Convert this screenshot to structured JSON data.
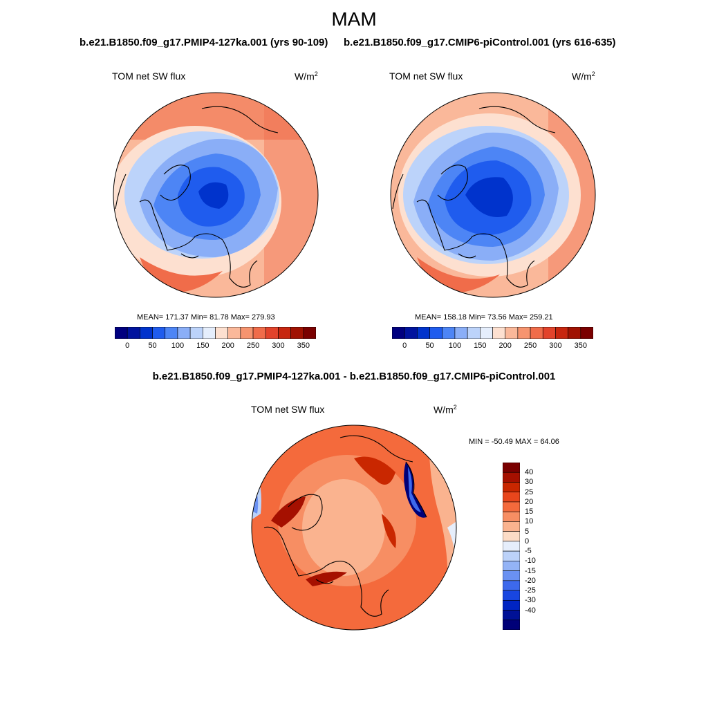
{
  "main_title": "MAM",
  "panels": [
    {
      "title": "b.e21.B1850.f09_g17.PMIP4-127ka.001 (yrs 90-109)",
      "variable": "TOM net SW flux",
      "units": "W/m",
      "units_sup": "2",
      "stats": "MEAN= 171.37  Min=  81.78  Max= 279.93",
      "stat_values": {
        "mean": 171.37,
        "min": 81.78,
        "max": 279.93
      }
    },
    {
      "title": "b.e21.B1850.f09_g17.CMIP6-piControl.001 (yrs 616-635)",
      "variable": "TOM net SW flux",
      "units": "W/m",
      "units_sup": "2",
      "stats": "MEAN= 158.18  Min=  73.56  Max= 259.21",
      "stat_values": {
        "mean": 158.18,
        "min": 73.56,
        "max": 259.21
      }
    },
    {
      "title": "b.e21.B1850.f09_g17.PMIP4-127ka.001 - b.e21.B1850.f09_g17.CMIP6-piControl.001",
      "variable": "TOM net SW flux",
      "units": "W/m",
      "units_sup": "2",
      "stats": "MIN = -50.49 MAX =  64.06",
      "stat_values": {
        "min": -50.49,
        "max": 64.06
      }
    }
  ],
  "colorbar_abs": {
    "colors": [
      "#00007f",
      "#00139e",
      "#0033cc",
      "#1f5cee",
      "#4d85f5",
      "#8aaef7",
      "#bcd3fa",
      "#e5eefc",
      "#fde0d0",
      "#fab89a",
      "#f6946f",
      "#f06c4a",
      "#e2432b",
      "#c7260f",
      "#a01202",
      "#7a0000"
    ],
    "ticks": [
      "0",
      "50",
      "100",
      "150",
      "200",
      "250",
      "300",
      "350"
    ]
  },
  "colorbar_diff": {
    "colors_top_to_bottom": [
      "#7a0000",
      "#a51000",
      "#c92700",
      "#e8461c",
      "#f46a3c",
      "#f78e63",
      "#fab38f",
      "#fcdcc6",
      "#e6eefb",
      "#bcd2f9",
      "#93b3f6",
      "#6a91f2",
      "#3d69ec",
      "#1846e0",
      "#0024c2",
      "#001196",
      "#000078"
    ],
    "ticks": [
      "40",
      "30",
      "25",
      "20",
      "15",
      "10",
      "5",
      "0",
      "-5",
      "-10",
      "-15",
      "-20",
      "-25",
      "-30",
      "-40"
    ]
  }
}
